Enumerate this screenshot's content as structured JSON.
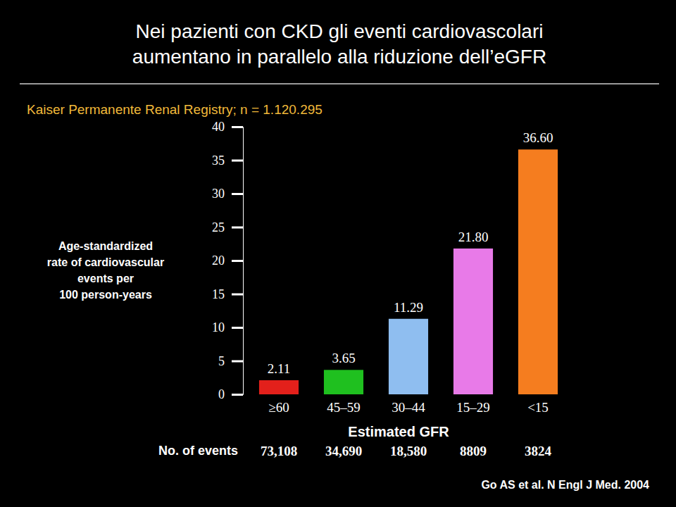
{
  "chart_data": {
    "type": "bar",
    "title": [
      "Nei pazienti con CKD gli eventi cardiovascolari",
      "aumentano in parallelo alla riduzione dell’eGFR"
    ],
    "subtitle": "Kaiser Permanente Renal Registry; n = 1.120.295",
    "y_label": [
      "Age-standardized",
      "rate of cardiovascular",
      "events per",
      "100 person-years"
    ],
    "x_label": "Estimated GFR",
    "categories": [
      "≥60",
      "45–59",
      "30–44",
      "15–29",
      "<15"
    ],
    "values": [
      2.11,
      3.65,
      11.29,
      21.8,
      36.6
    ],
    "value_labels": [
      "2.11",
      "3.65",
      "11.29",
      "21.80",
      "36.60"
    ],
    "colors": [
      "#e3201b",
      "#1fc01f",
      "#8fbef0",
      "#e87ae8",
      "#f57d1f"
    ],
    "data_labels": true,
    "ylim": [
      0,
      40
    ],
    "yticks": [
      0,
      5,
      10,
      15,
      20,
      25,
      30,
      35,
      40
    ],
    "grid": false,
    "events": {
      "label": "No. of events",
      "values": [
        73108,
        34690,
        18580,
        8809,
        3824
      ],
      "value_labels": [
        "73,108",
        "34,690",
        "18,580",
        "8809",
        "3824"
      ]
    },
    "source": "Go AS et al. N Engl J Med. 2004"
  }
}
